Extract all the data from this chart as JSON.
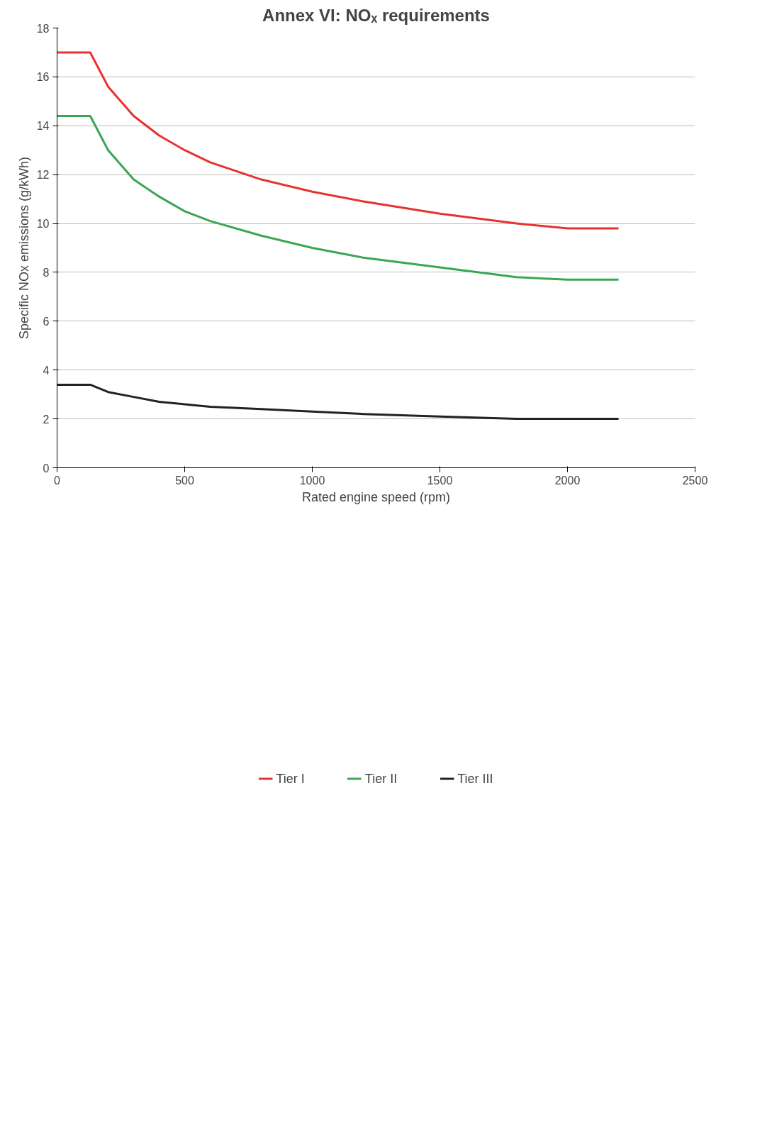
{
  "chart_data": {
    "type": "line",
    "title": "Annex VI: NOₓ requirements",
    "xlabel": "Rated engine speed (rpm)",
    "ylabel": "Specific NOx emissions (g/kWh)",
    "x": [
      0,
      130,
      200,
      300,
      400,
      500,
      600,
      800,
      1000,
      1200,
      1500,
      1800,
      2000,
      2200
    ],
    "series": [
      {
        "name": "Tier I",
        "color": "#e8322f",
        "values": [
          17.0,
          17.0,
          15.6,
          14.4,
          13.6,
          13.0,
          12.5,
          11.8,
          11.3,
          10.9,
          10.4,
          10.0,
          9.8,
          9.8
        ]
      },
      {
        "name": "Tier II",
        "color": "#3aa655",
        "values": [
          14.4,
          14.4,
          13.0,
          11.8,
          11.1,
          10.5,
          10.1,
          9.5,
          9.0,
          8.6,
          8.2,
          7.8,
          7.7,
          7.7
        ]
      },
      {
        "name": "Tier III",
        "color": "#222222",
        "values": [
          3.4,
          3.4,
          3.1,
          2.9,
          2.7,
          2.6,
          2.5,
          2.4,
          2.3,
          2.2,
          2.1,
          2.0,
          2.0,
          2.0
        ]
      }
    ],
    "xlim": [
      0,
      2500
    ],
    "xticks": [
      0,
      500,
      1000,
      1500,
      2000,
      2500
    ],
    "ylim": [
      0,
      18
    ],
    "yticks": [
      0,
      2,
      4,
      6,
      8,
      10,
      12,
      14,
      16,
      18
    ],
    "grid": "y",
    "legend": "bottom",
    "marker": "none",
    "line_style": "solid"
  }
}
